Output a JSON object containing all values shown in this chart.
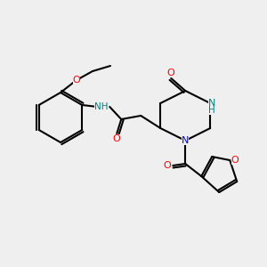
{
  "bg_color": "#efefef",
  "bond_color": "#000000",
  "bond_width": 1.5,
  "atom_colors": {
    "O": "#ff0000",
    "N": "#0000ff",
    "NH": "#008080",
    "C": "#000000"
  },
  "font_size": 7.5
}
